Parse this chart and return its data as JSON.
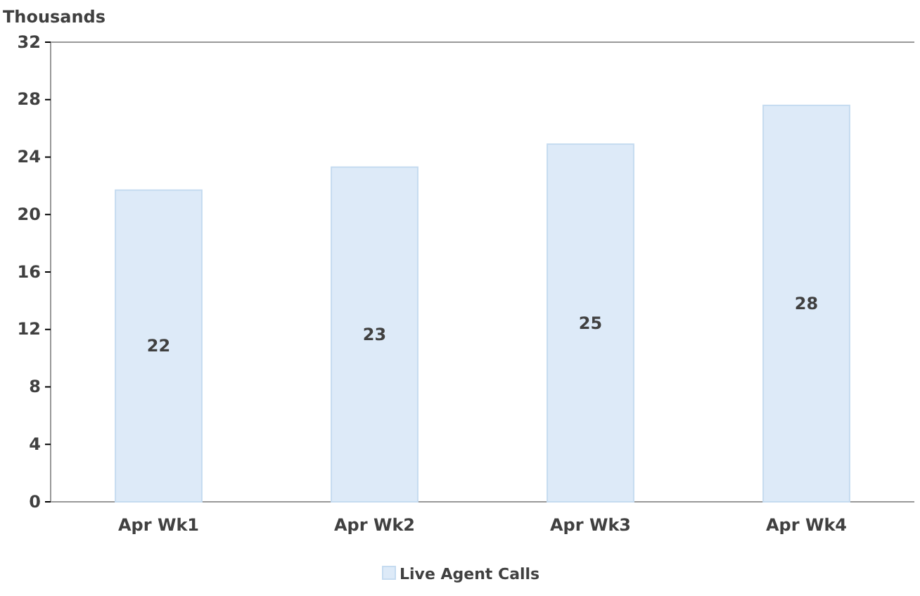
{
  "chart_data": {
    "type": "bar",
    "ylabel": "Thousands",
    "categories": [
      "Apr Wk1",
      "Apr Wk2",
      "Apr Wk3",
      "Apr Wk4"
    ],
    "series": [
      {
        "name": "Live Agent Calls",
        "color": "#ddeaf8",
        "values": [
          21.7,
          23.3,
          24.9,
          27.6
        ],
        "value_labels": [
          "22",
          "23",
          "25",
          "28"
        ]
      }
    ],
    "ylim": [
      0,
      32
    ],
    "yticks": [
      0,
      4,
      8,
      12,
      16,
      20,
      24,
      28,
      32
    ],
    "grid": false,
    "legend": "bottom"
  }
}
